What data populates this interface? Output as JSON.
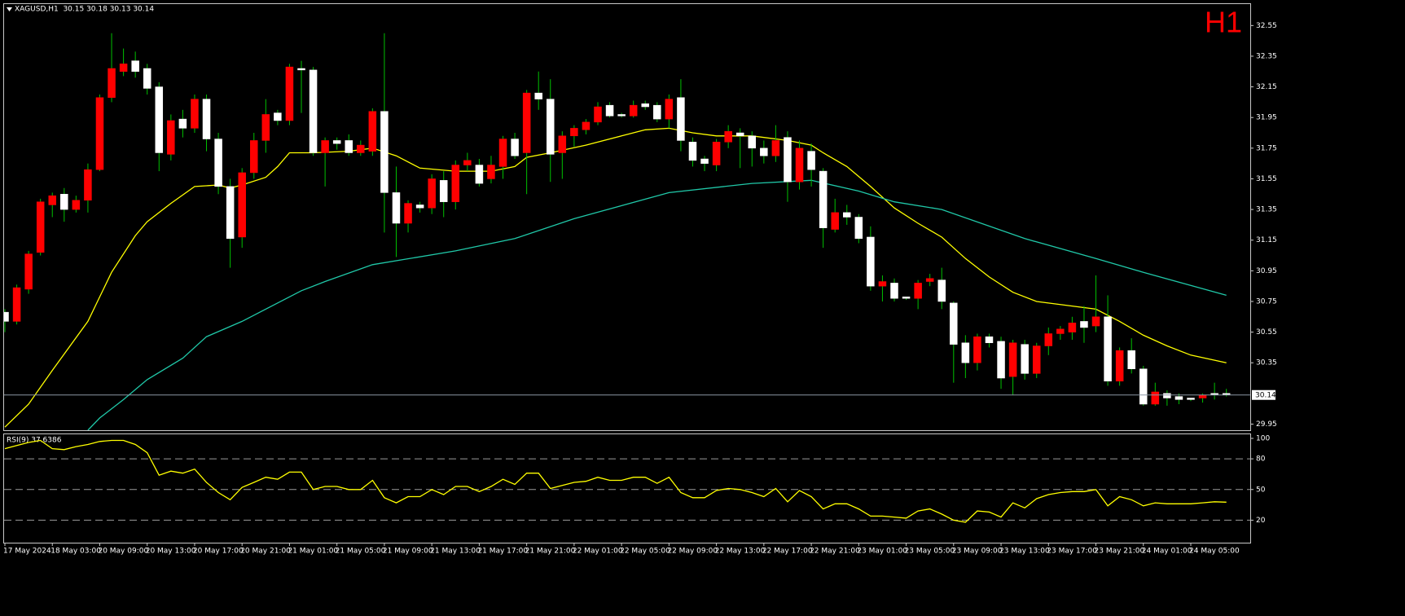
{
  "chart_data": [
    {
      "type": "candlestick",
      "title": "XAGUSD,H1  30.15 30.18 30.13 30.14",
      "timeframe": "H1",
      "categories": [
        "17 May 2024",
        null,
        null,
        null,
        "18 May 03:00",
        null,
        null,
        null,
        "20 May 09:00",
        null,
        null,
        null,
        "20 May 13:00",
        null,
        null,
        null,
        "20 May 17:00",
        null,
        null,
        null,
        "20 May 21:00",
        null,
        null,
        null,
        "21 May 01:00",
        null,
        null,
        null,
        "21 May 05:00",
        null,
        null,
        null,
        "21 May 09:00",
        null,
        null,
        null,
        "21 May 13:00",
        null,
        null,
        null,
        "21 May 17:00",
        null,
        null,
        null,
        "21 May 21:00",
        null,
        null,
        null,
        "22 May 01:00",
        null,
        null,
        null,
        "22 May 05:00",
        null,
        null,
        null,
        "22 May 09:00",
        null,
        null,
        null,
        "22 May 13:00",
        null,
        null,
        null,
        "22 May 17:00",
        null,
        null,
        null,
        "22 May 21:00",
        null,
        null,
        null,
        "23 May 01:00",
        null,
        null,
        null,
        "23 May 05:00",
        null,
        null,
        null,
        "23 May 09:00",
        null,
        null,
        null,
        "23 May 13:00",
        null,
        null,
        null,
        "23 May 17:00",
        null,
        null,
        null,
        "23 May 21:00",
        null,
        null,
        null,
        "24 May 01:00",
        null,
        null,
        null,
        "24 May 05:00",
        null,
        null,
        null
      ],
      "open": [
        30.68,
        30.62,
        30.83,
        31.07,
        31.38,
        31.45,
        31.35,
        31.41,
        31.61,
        32.08,
        32.25,
        32.32,
        32.27,
        32.15,
        31.71,
        31.94,
        31.88,
        32.07,
        31.81,
        31.5,
        31.17,
        31.59,
        31.8,
        31.98,
        31.93,
        32.27,
        32.26,
        31.72,
        31.8,
        31.8,
        31.72,
        31.73,
        31.99,
        31.46,
        31.26,
        31.38,
        31.36,
        31.54,
        31.4,
        31.64,
        31.64,
        31.55,
        31.63,
        31.81,
        31.72,
        32.11,
        32.07,
        31.72,
        31.83,
        31.87,
        31.92,
        32.03,
        31.97,
        31.96,
        32.04,
        32.03,
        31.94,
        32.08,
        31.79,
        31.68,
        31.64,
        31.79,
        31.85,
        31.83,
        31.75,
        31.7,
        31.82,
        31.53,
        31.73,
        31.6,
        31.22,
        31.33,
        31.3,
        31.17,
        30.85,
        30.87,
        30.78,
        30.77,
        30.88,
        30.89,
        30.74,
        30.48,
        30.35,
        30.52,
        30.49,
        30.26,
        30.47,
        30.28,
        30.46,
        30.54,
        30.55,
        30.62,
        30.59,
        30.65,
        30.23,
        30.43,
        30.31,
        30.08,
        30.15,
        30.13,
        30.12,
        30.12,
        30.15,
        30.15
      ],
      "high": [
        30.7,
        30.86,
        31.08,
        31.42,
        31.46,
        31.49,
        31.44,
        31.65,
        32.1,
        32.5,
        32.4,
        32.38,
        32.3,
        32.18,
        31.97,
        32.0,
        32.1,
        32.1,
        31.85,
        31.55,
        31.62,
        31.85,
        32.07,
        32.0,
        32.3,
        32.32,
        32.28,
        31.82,
        31.82,
        31.84,
        31.8,
        32.01,
        32.5,
        31.63,
        31.41,
        31.4,
        31.58,
        31.6,
        31.67,
        31.72,
        31.68,
        31.7,
        31.83,
        31.85,
        32.13,
        32.25,
        32.2,
        31.86,
        31.9,
        31.94,
        32.05,
        32.05,
        31.98,
        32.06,
        32.06,
        32.05,
        32.1,
        32.2,
        31.82,
        31.7,
        31.81,
        31.9,
        31.88,
        31.86,
        31.8,
        31.9,
        31.86,
        31.8,
        31.78,
        31.62,
        31.42,
        31.38,
        31.32,
        31.24,
        30.92,
        30.9,
        30.78,
        30.89,
        30.93,
        30.97,
        30.75,
        30.53,
        30.54,
        30.54,
        30.52,
        30.5,
        30.5,
        30.48,
        30.58,
        30.59,
        30.65,
        30.72,
        30.92,
        30.79,
        30.45,
        30.51,
        30.33,
        30.22,
        30.17,
        30.15,
        30.12,
        30.15,
        30.22,
        30.18
      ],
      "low": [
        30.55,
        30.6,
        30.8,
        31.05,
        31.3,
        31.27,
        31.33,
        31.33,
        31.6,
        32.05,
        32.22,
        32.21,
        32.1,
        31.6,
        31.67,
        31.82,
        31.85,
        31.73,
        31.45,
        30.97,
        31.1,
        31.55,
        31.72,
        31.9,
        31.9,
        31.98,
        31.7,
        31.5,
        31.74,
        31.7,
        31.7,
        31.7,
        31.2,
        31.04,
        31.2,
        31.33,
        31.32,
        31.3,
        31.35,
        31.6,
        31.5,
        31.52,
        31.55,
        31.68,
        31.45,
        32.0,
        31.53,
        31.55,
        31.76,
        31.84,
        31.9,
        31.95,
        31.95,
        31.95,
        32.0,
        31.92,
        31.88,
        31.73,
        31.63,
        31.6,
        31.6,
        31.75,
        31.62,
        31.63,
        31.65,
        31.66,
        31.4,
        31.48,
        31.5,
        31.1,
        31.2,
        31.25,
        31.13,
        30.82,
        30.75,
        30.75,
        30.76,
        30.7,
        30.85,
        30.7,
        30.22,
        30.25,
        30.3,
        30.45,
        30.18,
        30.14,
        30.24,
        30.25,
        30.4,
        30.5,
        30.5,
        30.48,
        30.55,
        30.2,
        30.2,
        30.28,
        30.07,
        30.07,
        30.07,
        30.08,
        30.1,
        30.09,
        30.11,
        30.13
      ],
      "close": [
        30.62,
        30.84,
        31.06,
        31.4,
        31.44,
        31.35,
        31.41,
        31.61,
        32.08,
        32.27,
        32.3,
        32.25,
        32.14,
        31.72,
        31.93,
        31.88,
        32.07,
        31.81,
        31.5,
        31.16,
        31.59,
        31.8,
        31.97,
        31.93,
        32.28,
        32.26,
        31.72,
        31.8,
        31.78,
        31.72,
        31.77,
        31.99,
        31.46,
        31.26,
        31.39,
        31.36,
        31.55,
        31.4,
        31.64,
        31.67,
        31.52,
        31.64,
        31.81,
        31.7,
        32.11,
        32.07,
        31.71,
        31.83,
        31.88,
        31.92,
        32.02,
        31.96,
        31.96,
        32.03,
        32.02,
        31.94,
        32.07,
        31.8,
        31.67,
        31.65,
        31.79,
        31.86,
        31.83,
        31.75,
        31.7,
        31.8,
        31.53,
        31.75,
        31.61,
        31.23,
        31.33,
        31.3,
        31.16,
        30.85,
        30.88,
        30.77,
        30.77,
        30.87,
        30.9,
        30.75,
        30.47,
        30.35,
        30.52,
        30.48,
        30.25,
        30.48,
        30.28,
        30.46,
        30.54,
        30.57,
        30.61,
        30.58,
        30.65,
        30.23,
        30.43,
        30.31,
        30.08,
        30.16,
        30.12,
        30.11,
        30.11,
        30.14,
        30.14,
        30.14
      ],
      "up_color": "#ff0000",
      "down_color": "#ffffff",
      "wick_color": "#00c000",
      "lines": [
        {
          "color": "#ffff00",
          "x": [
            0,
            2,
            4,
            7,
            9,
            11,
            12,
            14,
            16,
            18,
            19,
            20,
            22,
            23,
            24,
            26,
            29,
            31,
            33,
            35,
            38,
            41,
            43,
            44,
            46,
            49,
            52,
            54,
            56,
            58,
            60,
            63,
            66,
            68,
            69,
            71,
            73,
            75,
            77,
            79,
            81,
            83,
            85,
            87,
            90,
            92,
            94,
            96,
            98,
            100,
            103
          ],
          "values": [
            29.93,
            30.08,
            30.3,
            30.62,
            30.94,
            31.18,
            31.27,
            31.39,
            31.5,
            31.51,
            31.49,
            31.51,
            31.56,
            31.63,
            31.72,
            31.72,
            31.73,
            31.75,
            31.7,
            31.62,
            31.6,
            31.6,
            31.63,
            31.69,
            31.72,
            31.77,
            31.83,
            31.87,
            31.88,
            31.85,
            31.83,
            31.83,
            31.8,
            31.77,
            31.72,
            31.63,
            31.5,
            31.36,
            31.26,
            31.17,
            31.03,
            30.91,
            30.81,
            30.75,
            30.72,
            30.7,
            30.62,
            30.53,
            30.46,
            30.4,
            30.35
          ]
        },
        {
          "color": "#20c8a8",
          "x": [
            7,
            8,
            10,
            12,
            15,
            17,
            20,
            25,
            27,
            31,
            38,
            43,
            48,
            56,
            63,
            68,
            72,
            75,
            79,
            86,
            92,
            96,
            103
          ],
          "values": [
            29.91,
            29.99,
            30.11,
            30.24,
            30.38,
            30.52,
            30.62,
            30.82,
            30.88,
            30.99,
            31.08,
            31.16,
            31.29,
            31.46,
            31.52,
            31.54,
            31.47,
            31.4,
            31.35,
            31.16,
            31.03,
            30.94,
            30.79
          ]
        }
      ],
      "ylim": [
        29.91,
        32.69
      ],
      "yticks": [
        32.55,
        32.35,
        32.15,
        31.95,
        31.75,
        31.55,
        31.35,
        31.15,
        30.95,
        30.75,
        30.55,
        30.35,
        29.95
      ],
      "last_price": 30.14
    },
    {
      "type": "line",
      "title": "RSI(9) 37.6386",
      "color": "#ffff00",
      "values": [
        90,
        93,
        96,
        98,
        90,
        89,
        92,
        94,
        97,
        98,
        98,
        94,
        86,
        64,
        68,
        66,
        70,
        57,
        47,
        40,
        52,
        57,
        62,
        60,
        67,
        67,
        50,
        53,
        53,
        50,
        50,
        59,
        42,
        37,
        43,
        43,
        50,
        45,
        53,
        53,
        48,
        53,
        60,
        55,
        66,
        66,
        51,
        54,
        57,
        58,
        62,
        59,
        59,
        62,
        62,
        56,
        62,
        47,
        42,
        42,
        49,
        51,
        50,
        47,
        43,
        51,
        38,
        49,
        43,
        31,
        36,
        36,
        31,
        24,
        24,
        23,
        22,
        29,
        31,
        26,
        20,
        18,
        29,
        28,
        23,
        37,
        32,
        41,
        45,
        47,
        48,
        48,
        50,
        34,
        43,
        40,
        34,
        37,
        36,
        36,
        36,
        37,
        38,
        37.6386
      ],
      "ylim": [
        -2,
        104
      ],
      "yticks": [
        100,
        80,
        50,
        20
      ],
      "levels": [
        80,
        50,
        20
      ]
    }
  ]
}
